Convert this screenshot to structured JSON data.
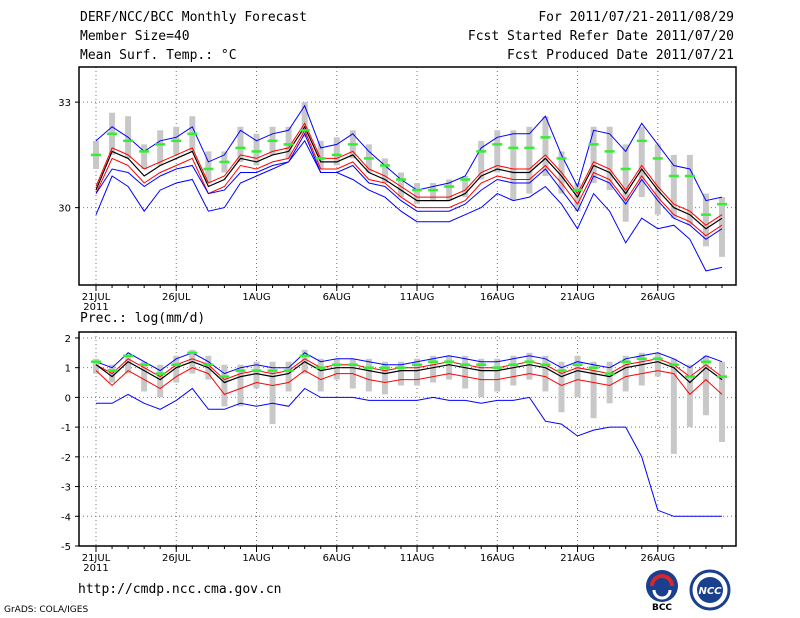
{
  "header": {
    "title": "DERF/NCC/BCC Monthly Forecast",
    "member": "Member Size=40",
    "variable": "Mean Surf. Temp.: °C",
    "period": "For 2011/07/21-2011/08/29",
    "started": "Fcst Started Refer Date 2011/07/20",
    "produced": "Fcst Produced Date 2011/07/21"
  },
  "footer": {
    "url": "http://cmdp.ncc.cma.gov.cn",
    "grads": "GrADS: COLA/IGES",
    "logo_bcc": "BCC",
    "logo_ncc": "NCC"
  },
  "colors": {
    "mean": "#000000",
    "spread": "#ff0000",
    "envelope": "#0000ff",
    "median": "#33ee33",
    "box": "#c8c8c8"
  },
  "chart_data": [
    {
      "type": "line",
      "title": "Mean Surf. Temp.: °C",
      "x": [
        "7/21",
        "7/22",
        "7/23",
        "7/24",
        "7/25",
        "7/26",
        "7/27",
        "7/28",
        "7/29",
        "7/30",
        "7/31",
        "8/1",
        "8/2",
        "8/3",
        "8/4",
        "8/5",
        "8/6",
        "8/7",
        "8/8",
        "8/9",
        "8/10",
        "8/11",
        "8/12",
        "8/13",
        "8/14",
        "8/15",
        "8/16",
        "8/17",
        "8/18",
        "8/19",
        "8/20",
        "8/21",
        "8/22",
        "8/23",
        "8/24",
        "8/25",
        "8/26",
        "8/27",
        "8/28",
        "8/29"
      ],
      "xticks": [
        "21JUL",
        "26JUL",
        "1AUG",
        "6AUG",
        "11AUG",
        "16AUG",
        "21AUG",
        "26AUG"
      ],
      "xtick_index": [
        0,
        5,
        10,
        15,
        20,
        25,
        30,
        35
      ],
      "year_label": "2011",
      "yticks": [
        "30",
        "33"
      ],
      "ytick_values": [
        30,
        33
      ],
      "ylim": [
        27.8,
        34.0
      ],
      "series": [
        {
          "name": "max",
          "values": [
            29.8,
            30.9,
            30.6,
            29.9,
            30.5,
            30.7,
            30.8,
            29.9,
            30.0,
            30.7,
            30.9,
            31.1,
            31.3,
            31.9,
            31.0,
            31.0,
            30.8,
            30.5,
            30.3,
            29.9,
            29.6,
            29.6,
            29.6,
            29.8,
            30.0,
            30.4,
            30.2,
            30.3,
            30.6,
            30.1,
            29.4,
            30.4,
            29.9,
            29.0,
            29.7,
            29.4,
            29.5,
            29.1,
            28.2,
            28.3
          ]
        },
        {
          "name": "ens_upper",
          "values": [
            30.6,
            31.7,
            31.5,
            31.1,
            31.3,
            31.5,
            31.7,
            30.7,
            30.9,
            31.5,
            31.4,
            31.6,
            31.7,
            32.4,
            31.4,
            31.4,
            31.6,
            31.1,
            30.9,
            30.6,
            30.3,
            30.3,
            30.3,
            30.5,
            31.0,
            31.2,
            31.1,
            31.1,
            31.5,
            31.0,
            30.4,
            31.3,
            31.1,
            30.5,
            31.2,
            30.6,
            30.1,
            29.9,
            29.5,
            29.8
          ]
        },
        {
          "name": "ens_mean",
          "values": [
            30.5,
            31.6,
            31.4,
            30.9,
            31.2,
            31.4,
            31.6,
            30.6,
            30.8,
            31.4,
            31.3,
            31.5,
            31.6,
            32.3,
            31.3,
            31.3,
            31.5,
            31.0,
            30.8,
            30.5,
            30.2,
            30.2,
            30.2,
            30.4,
            30.9,
            31.1,
            31.0,
            31.0,
            31.4,
            30.9,
            30.3,
            31.2,
            31.0,
            30.4,
            31.1,
            30.5,
            30.0,
            29.8,
            29.4,
            29.7
          ]
        },
        {
          "name": "ens_lower",
          "values": [
            30.4,
            31.4,
            31.2,
            30.7,
            31.0,
            31.2,
            31.4,
            30.4,
            30.6,
            31.2,
            31.1,
            31.3,
            31.4,
            32.2,
            31.1,
            31.1,
            31.3,
            30.8,
            30.7,
            30.3,
            30.0,
            30.0,
            30.0,
            30.2,
            30.7,
            30.9,
            30.8,
            30.8,
            31.2,
            30.7,
            30.1,
            31.0,
            30.8,
            30.2,
            30.9,
            30.3,
            29.8,
            29.6,
            29.2,
            29.5
          ]
        },
        {
          "name": "min",
          "values": [
            30.4,
            31.1,
            31.0,
            30.6,
            30.9,
            31.1,
            31.2,
            30.4,
            30.5,
            31.0,
            31.0,
            31.2,
            31.3,
            32.1,
            31.0,
            31.0,
            31.2,
            30.7,
            30.6,
            30.2,
            29.9,
            29.9,
            29.9,
            30.1,
            30.5,
            30.8,
            30.7,
            30.7,
            31.1,
            30.5,
            29.9,
            30.9,
            30.7,
            30.1,
            30.8,
            30.2,
            29.7,
            29.5,
            29.1,
            29.4
          ]
        },
        {
          "name": "top",
          "values": [
            31.9,
            32.3,
            32.0,
            31.6,
            31.9,
            32.0,
            32.3,
            31.3,
            31.5,
            32.2,
            31.9,
            32.1,
            32.2,
            32.9,
            31.7,
            31.8,
            32.1,
            31.6,
            31.2,
            30.8,
            30.5,
            30.6,
            30.7,
            30.9,
            31.7,
            32.0,
            32.1,
            32.1,
            32.6,
            31.5,
            30.6,
            32.2,
            32.1,
            31.6,
            32.4,
            31.8,
            31.2,
            31.1,
            30.2,
            30.3
          ]
        },
        {
          "name": "median",
          "values": [
            31.5,
            32.1,
            31.9,
            31.6,
            31.8,
            31.9,
            32.1,
            31.1,
            31.3,
            31.7,
            31.6,
            31.9,
            31.8,
            32.2,
            31.4,
            31.5,
            31.8,
            31.4,
            31.2,
            30.8,
            30.5,
            30.5,
            30.6,
            30.8,
            31.6,
            31.8,
            31.7,
            31.7,
            32.0,
            31.4,
            30.5,
            31.8,
            31.6,
            31.1,
            31.9,
            31.4,
            30.9,
            30.9,
            29.8,
            30.1
          ]
        }
      ],
      "box_low": [
        31.1,
        31.5,
        31.4,
        31.1,
        31.2,
        31.5,
        31.6,
        30.7,
        31.0,
        31.3,
        31.2,
        31.5,
        31.4,
        32.0,
        31.1,
        31.2,
        31.4,
        31.0,
        30.7,
        30.3,
        30.1,
        30.2,
        30.2,
        30.3,
        30.8,
        31.0,
        30.2,
        30.4,
        30.9,
        30.4,
        29.9,
        30.7,
        30.5,
        29.6,
        30.3,
        29.8,
        29.7,
        29.5,
        28.9,
        28.6
      ],
      "box_high": [
        31.9,
        32.7,
        32.6,
        31.8,
        32.2,
        32.3,
        32.6,
        31.6,
        31.6,
        32.3,
        32.1,
        32.3,
        32.3,
        33.0,
        31.9,
        32.0,
        32.2,
        31.8,
        31.4,
        31.0,
        30.7,
        30.7,
        30.8,
        30.9,
        31.9,
        32.2,
        32.2,
        32.3,
        32.6,
        31.6,
        30.7,
        32.3,
        32.3,
        31.8,
        32.3,
        31.8,
        31.5,
        31.5,
        30.4,
        30.3
      ]
    },
    {
      "type": "line",
      "title": "Prec.: log(mm/d)",
      "x": [
        "7/21",
        "7/22",
        "7/23",
        "7/24",
        "7/25",
        "7/26",
        "7/27",
        "7/28",
        "7/29",
        "7/30",
        "7/31",
        "8/1",
        "8/2",
        "8/3",
        "8/4",
        "8/5",
        "8/6",
        "8/7",
        "8/8",
        "8/9",
        "8/10",
        "8/11",
        "8/12",
        "8/13",
        "8/14",
        "8/15",
        "8/16",
        "8/17",
        "8/18",
        "8/19",
        "8/20",
        "8/21",
        "8/22",
        "8/23",
        "8/24",
        "8/25",
        "8/26",
        "8/27",
        "8/28",
        "8/29"
      ],
      "xticks": [
        "21JUL",
        "26JUL",
        "1AUG",
        "6AUG",
        "11AUG",
        "16AUG",
        "21AUG",
        "26AUG"
      ],
      "xtick_index": [
        0,
        5,
        10,
        15,
        20,
        25,
        30,
        35
      ],
      "year_label": "2011",
      "yticks": [
        "2",
        "1",
        "0",
        "-1",
        "-2",
        "-3",
        "-4",
        "-5"
      ],
      "ytick_values": [
        2,
        1,
        0,
        -1,
        -2,
        -3,
        -4,
        -5
      ],
      "ylim": [
        -5,
        2.2
      ],
      "series": [
        {
          "name": "max",
          "values": [
            1.2,
            1.0,
            1.5,
            1.2,
            0.9,
            1.3,
            1.5,
            1.2,
            0.8,
            1.0,
            1.1,
            1.0,
            1.0,
            1.5,
            1.2,
            1.3,
            1.3,
            1.2,
            1.1,
            1.1,
            1.2,
            1.3,
            1.4,
            1.3,
            1.2,
            1.2,
            1.3,
            1.4,
            1.3,
            1.0,
            1.2,
            1.1,
            1.0,
            1.3,
            1.4,
            1.5,
            1.3,
            1.0,
            1.4,
            1.2
          ]
        },
        {
          "name": "ens_upper",
          "values": [
            1.1,
            0.8,
            1.3,
            1.0,
            0.7,
            1.1,
            1.3,
            1.1,
            0.6,
            0.8,
            0.9,
            0.8,
            0.9,
            1.3,
            1.0,
            1.1,
            1.1,
            1.0,
            0.9,
            1.0,
            1.0,
            1.1,
            1.2,
            1.1,
            1.0,
            1.0,
            1.1,
            1.2,
            1.1,
            0.8,
            1.0,
            0.9,
            0.8,
            1.1,
            1.2,
            1.3,
            1.1,
            0.7,
            1.1,
            0.7
          ]
        },
        {
          "name": "ens_mean",
          "values": [
            1.1,
            0.7,
            1.2,
            0.9,
            0.6,
            1.0,
            1.2,
            1.0,
            0.5,
            0.7,
            0.8,
            0.7,
            0.8,
            1.2,
            0.9,
            1.0,
            1.0,
            0.9,
            0.8,
            0.9,
            0.9,
            1.0,
            1.1,
            1.0,
            0.9,
            0.9,
            1.0,
            1.1,
            1.0,
            0.7,
            0.9,
            0.8,
            0.7,
            1.0,
            1.1,
            1.2,
            1.0,
            0.5,
            1.0,
            0.6
          ]
        },
        {
          "name": "ens_lower",
          "values": [
            0.9,
            0.4,
            0.9,
            0.6,
            0.3,
            0.7,
            1.0,
            0.8,
            0.1,
            0.3,
            0.5,
            0.4,
            0.5,
            0.9,
            0.6,
            0.8,
            0.8,
            0.6,
            0.5,
            0.6,
            0.6,
            0.7,
            0.8,
            0.7,
            0.6,
            0.6,
            0.7,
            0.8,
            0.7,
            0.4,
            0.6,
            0.5,
            0.4,
            0.7,
            0.8,
            0.9,
            0.8,
            0.1,
            0.6,
            0.1
          ]
        },
        {
          "name": "min",
          "values": [
            -0.2,
            -0.2,
            0.1,
            -0.2,
            -0.4,
            -0.1,
            0.3,
            -0.4,
            -0.4,
            -0.2,
            -0.3,
            -0.2,
            -0.3,
            0.3,
            0.0,
            0.0,
            0.0,
            -0.1,
            -0.1,
            -0.1,
            -0.1,
            0.0,
            -0.1,
            -0.1,
            -0.2,
            -0.1,
            -0.1,
            0.0,
            -0.8,
            -0.9,
            -1.3,
            -1.1,
            -1.0,
            -1.0,
            -2.0,
            -3.8,
            -4.0,
            -4.0,
            -4.0,
            -4.0
          ]
        },
        {
          "name": "median",
          "values": [
            1.2,
            0.9,
            1.4,
            1.1,
            0.8,
            1.1,
            1.5,
            1.1,
            0.7,
            0.9,
            0.9,
            0.9,
            0.9,
            1.4,
            1.0,
            1.1,
            1.1,
            1.0,
            1.0,
            1.0,
            1.1,
            1.2,
            1.2,
            1.1,
            1.1,
            1.0,
            1.1,
            1.2,
            1.1,
            0.9,
            1.1,
            1.0,
            0.8,
            1.2,
            1.3,
            1.3,
            1.1,
            0.7,
            1.2,
            0.7
          ]
        }
      ],
      "box_low": [
        0.8,
        0.5,
        0.8,
        0.2,
        0.0,
        0.5,
        0.8,
        0.6,
        -0.3,
        -0.3,
        0.3,
        -0.9,
        0.2,
        0.8,
        0.2,
        0.6,
        0.3,
        0.2,
        0.1,
        0.4,
        0.4,
        0.5,
        0.6,
        0.3,
        0.0,
        0.2,
        0.4,
        0.6,
        0.2,
        -0.5,
        0.0,
        -0.7,
        -0.2,
        0.2,
        0.4,
        0.7,
        -1.9,
        -1.0,
        -0.6,
        -1.5
      ],
      "box_high": [
        1.3,
        1.1,
        1.4,
        1.2,
        1.1,
        1.4,
        1.6,
        1.4,
        1.1,
        1.1,
        1.2,
        1.2,
        1.2,
        1.6,
        1.3,
        1.3,
        1.3,
        1.3,
        1.2,
        1.2,
        1.3,
        1.4,
        1.4,
        1.4,
        1.3,
        1.3,
        1.4,
        1.5,
        1.4,
        1.2,
        1.4,
        1.2,
        1.2,
        1.4,
        1.5,
        1.5,
        1.3,
        1.1,
        1.4,
        1.2
      ]
    }
  ]
}
